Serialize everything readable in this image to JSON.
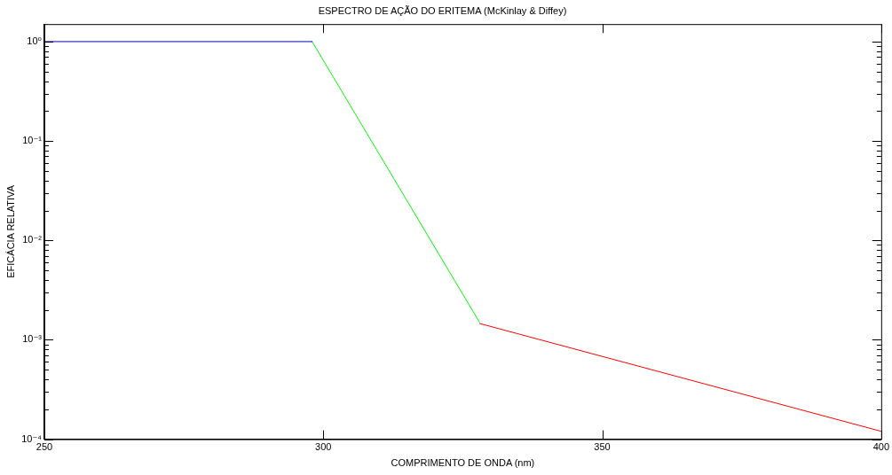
{
  "chart_data": {
    "type": "line",
    "title": "ESPECTRO DE AÇÃO DO ERITEMA (McKinlay & Diffey)",
    "xlabel": "COMPRIMENTO DE ONDA (nm)",
    "ylabel": "EFICÁCIA RELATIVA",
    "log": "y",
    "grid": false,
    "legend": false,
    "marker": "none",
    "line_style": "solid",
    "xlim": [
      250,
      400
    ],
    "xticks": [
      250,
      300,
      350,
      400
    ],
    "ylim": [
      0.0001,
      1.5
    ],
    "yticks": [
      {
        "value": 0.0001,
        "label": "10⁻⁴"
      },
      {
        "value": 0.0002,
        "label": null
      },
      {
        "value": 0.0003,
        "label": null
      },
      {
        "value": 0.0004,
        "label": null
      },
      {
        "value": 0.0005,
        "label": null
      },
      {
        "value": 0.0006,
        "label": null
      },
      {
        "value": 0.0007,
        "label": null
      },
      {
        "value": 0.0008,
        "label": null
      },
      {
        "value": 0.0009,
        "label": null
      },
      {
        "value": 0.001,
        "label": "10⁻³"
      },
      {
        "value": 0.002,
        "label": null
      },
      {
        "value": 0.003,
        "label": null
      },
      {
        "value": 0.004,
        "label": null
      },
      {
        "value": 0.005,
        "label": null
      },
      {
        "value": 0.006,
        "label": null
      },
      {
        "value": 0.007,
        "label": null
      },
      {
        "value": 0.008,
        "label": null
      },
      {
        "value": 0.009,
        "label": null
      },
      {
        "value": 0.01,
        "label": "10⁻²"
      },
      {
        "value": 0.02,
        "label": null
      },
      {
        "value": 0.03,
        "label": null
      },
      {
        "value": 0.04,
        "label": null
      },
      {
        "value": 0.05,
        "label": null
      },
      {
        "value": 0.06,
        "label": null
      },
      {
        "value": 0.07,
        "label": null
      },
      {
        "value": 0.08,
        "label": null
      },
      {
        "value": 0.09,
        "label": null
      },
      {
        "value": 0.1,
        "label": "10⁻¹"
      },
      {
        "value": 0.2,
        "label": null
      },
      {
        "value": 0.3,
        "label": null
      },
      {
        "value": 0.4,
        "label": null
      },
      {
        "value": 0.5,
        "label": null
      },
      {
        "value": 0.6,
        "label": null
      },
      {
        "value": 0.7,
        "label": null
      },
      {
        "value": 0.8,
        "label": null
      },
      {
        "value": 0.9,
        "label": null
      },
      {
        "value": 1,
        "label": "10⁰"
      }
    ],
    "series": [
      {
        "color": "#0000b4",
        "x": [
          250,
          298
        ],
        "values": [
          1,
          1
        ]
      },
      {
        "color": "#00ff00",
        "x": [
          298,
          328
        ],
        "values": [
          1,
          0.0015
        ]
      },
      {
        "color": "#ff0000",
        "x": [
          328,
          400
        ],
        "values": [
          0.00146,
          0.00012
        ]
      }
    ]
  }
}
